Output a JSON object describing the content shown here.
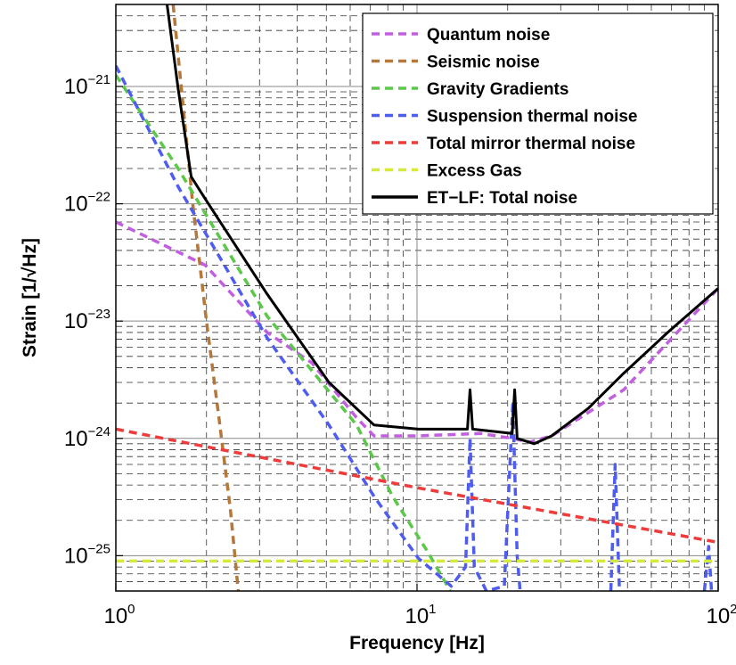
{
  "chart_data": {
    "type": "line",
    "xlabel": "Frequency [Hz]",
    "ylabel": "Strain [1/√Hz]",
    "xscale": "log",
    "yscale": "log",
    "grid": true,
    "legend": "upper right",
    "xlim": [
      1,
      100
    ],
    "ylim": [
      5e-26,
      5e-21
    ],
    "xticks": [
      {
        "value": 1,
        "label": "10",
        "exponent": "0"
      },
      {
        "value": 10,
        "label": "10",
        "exponent": "1"
      },
      {
        "value": 100,
        "label": "10",
        "exponent": "2"
      }
    ],
    "yticks": [
      {
        "value": 1e-25,
        "label": "10",
        "exponent": "−25"
      },
      {
        "value": 1e-24,
        "label": "10",
        "exponent": "−24"
      },
      {
        "value": 1e-23,
        "label": "10",
        "exponent": "−23"
      },
      {
        "value": 1e-22,
        "label": "10",
        "exponent": "−22"
      },
      {
        "value": 1e-21,
        "label": "10",
        "exponent": "−21"
      }
    ],
    "xticks_minor": [
      2,
      3,
      4,
      5,
      6,
      7,
      8,
      9,
      20,
      30,
      40,
      50,
      60,
      70,
      80,
      90
    ],
    "yticks_minor": [
      6e-26,
      7e-26,
      8e-26,
      9e-26,
      2e-25,
      3e-25,
      4e-25,
      5e-25,
      6e-25,
      7e-25,
      8e-25,
      9e-25,
      2e-24,
      3e-24,
      4e-24,
      5e-24,
      6e-24,
      7e-24,
      8e-24,
      9e-24,
      2e-23,
      3e-23,
      4e-23,
      5e-23,
      6e-23,
      7e-23,
      8e-23,
      9e-23,
      2e-22,
      3e-22,
      4e-22,
      5e-22,
      6e-22,
      7e-22,
      8e-22,
      9e-22,
      2e-21,
      3e-21,
      4e-21
    ],
    "series": [
      {
        "name": "Quantum noise",
        "color": "#c25ee0",
        "style": "dashed",
        "x": [
          1,
          1.98,
          3.18,
          4.48,
          6.3,
          7.2,
          10,
          16.3,
          20.7,
          23.7,
          28,
          48.6,
          100
        ],
        "values": [
          7e-23,
          3e-23,
          8e-24,
          4.4e-24,
          1.5e-24,
          1.05e-24,
          1.05e-24,
          1.1e-24,
          1e-24,
          9.3e-25,
          1.05e-24,
          2.6e-24,
          1.9e-23
        ]
      },
      {
        "name": "Seismic noise",
        "color": "#b5773a",
        "style": "dashed",
        "x": [
          1.55,
          1.8,
          2.0,
          2.2,
          2.4,
          2.55
        ],
        "values": [
          5e-21,
          1e-22,
          1e-23,
          1.5e-24,
          2.5e-25,
          5e-26
        ]
      },
      {
        "name": "Gravity Gradients",
        "color": "#5cc84a",
        "style": "dashed",
        "x": [
          1,
          1.61,
          3.18,
          6.3,
          8.3,
          10.8,
          12.9
        ],
        "values": [
          1.25e-21,
          2e-22,
          1.1e-23,
          1.3e-24,
          3.2e-25,
          1.1e-25,
          5e-26
        ]
      },
      {
        "name": "Suspension thermal noise",
        "color": "#4f5cf0",
        "style": "dashed",
        "x": [
          1,
          1.61,
          3.18,
          5.1,
          7.2,
          10.1,
          13,
          14.5,
          15,
          15.5,
          17,
          19.5,
          20.8,
          21.5,
          22,
          30,
          44,
          45.5,
          47,
          60,
          90,
          93,
          95
        ],
        "values": [
          1.5e-21,
          1.4e-22,
          7.2e-24,
          1.3e-24,
          3.2e-25,
          9.5e-26,
          5.5e-26,
          8e-26,
          1e-24,
          8e-26,
          5e-26,
          5.5e-26,
          2e-24,
          1e-25,
          5e-26,
          null,
          5e-26,
          6e-25,
          5e-26,
          null,
          5e-26,
          1.2e-25,
          5e-26
        ]
      },
      {
        "name": "Total mirror thermal noise",
        "color": "#ee3b3b",
        "style": "dashed",
        "x": [
          1,
          10,
          100
        ],
        "values": [
          1.2e-24,
          3.8e-25,
          1.3e-25
        ]
      },
      {
        "name": "Excess Gas",
        "color": "#d5ea3c",
        "style": "dashed",
        "x": [
          1,
          100
        ],
        "values": [
          9e-26,
          9e-26
        ]
      },
      {
        "name": "ET−LF: Total noise",
        "color": "#000000",
        "style": "solid",
        "x": [
          1.48,
          1.61,
          1.78,
          1.98,
          3.18,
          5.1,
          7.2,
          10.1,
          14.7,
          15.0,
          15.3,
          20.7,
          21.1,
          21.5,
          24.5,
          28,
          37,
          48.6,
          68,
          100
        ],
        "values": [
          5e-21,
          9.6e-22,
          1.7e-22,
          1.1e-22,
          1.7e-23,
          3e-24,
          1.3e-24,
          1.2e-24,
          1.2e-24,
          2.6e-24,
          1.2e-24,
          1.1e-24,
          2.6e-24,
          1e-24,
          9e-25,
          1.05e-24,
          1.8e-24,
          3.6e-24,
          8e-24,
          1.9e-23
        ]
      }
    ]
  }
}
